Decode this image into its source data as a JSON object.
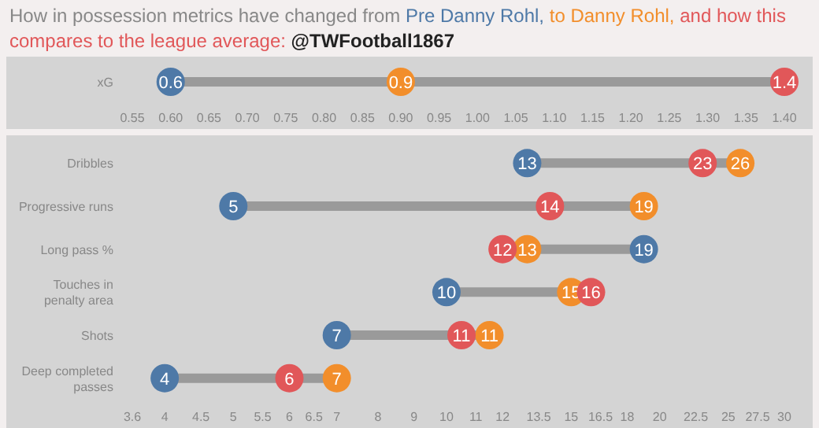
{
  "chart_data": [
    {
      "type": "scatter",
      "title": "How in possession metrics have changed from",
      "subtitle": "@TWFootball1867",
      "categories": [
        "xG"
      ],
      "orientation": "horizontal",
      "data_labels": true,
      "xlim": [
        0.55,
        1.4
      ],
      "xticks": [
        {
          "value": 0.55,
          "label": "0.55"
        },
        {
          "value": 0.6,
          "label": "0.60"
        },
        {
          "value": 0.65,
          "label": "0.65"
        },
        {
          "value": 0.7,
          "label": "0.70"
        },
        {
          "value": 0.75,
          "label": "0.75"
        },
        {
          "value": 0.8,
          "label": "0.80"
        },
        {
          "value": 0.85,
          "label": "0.85"
        },
        {
          "value": 0.9,
          "label": "0.90"
        },
        {
          "value": 0.95,
          "label": "0.95"
        },
        {
          "value": 1.0,
          "label": "1.00"
        },
        {
          "value": 1.05,
          "label": "1.05"
        },
        {
          "value": 1.1,
          "label": "1.10"
        },
        {
          "value": 1.15,
          "label": "1.15"
        },
        {
          "value": 1.2,
          "label": "1.20"
        },
        {
          "value": 1.25,
          "label": "1.25"
        },
        {
          "value": 1.3,
          "label": "1.30"
        },
        {
          "value": 1.35,
          "label": "1.35"
        },
        {
          "value": 1.4,
          "label": "1.40"
        }
      ],
      "series": [
        {
          "name": "Pre Danny Rohl,",
          "color": "#4e79a7",
          "values": [
            0.6
          ]
        },
        {
          "name": "to Danny Rohl,",
          "color": "#f28e2b",
          "values": [
            0.9
          ]
        },
        {
          "name": "and how this compares to the league average:",
          "color": "#e15759",
          "values": [
            1.4
          ]
        }
      ]
    },
    {
      "type": "scatter",
      "categories": [
        "Dribbles",
        "Progressive runs",
        "Long pass %",
        "Touches in penalty area",
        "Shots",
        "Deep completed passes"
      ],
      "orientation": "horizontal",
      "log": "x",
      "xlim": [
        3.6,
        30
      ],
      "xticks": [
        3.6,
        4,
        4.5,
        5,
        5.5,
        6,
        6.5,
        7,
        8,
        9,
        10,
        11,
        12,
        13.5,
        15,
        16.5,
        18,
        20,
        22.5,
        25,
        27.5,
        30
      ],
      "series": [
        {
          "color": "#4e79a7",
          "values": [
            13,
            5,
            19,
            10,
            7,
            4
          ],
          "value_labels": [
            "13",
            "5",
            "19",
            "10",
            "7",
            "4"
          ]
        },
        {
          "color": "#f28e2b",
          "values": [
            26,
            19,
            13,
            15,
            11.5,
            7
          ],
          "value_labels": [
            "26",
            "19",
            "13",
            "15",
            "11",
            "7"
          ]
        },
        {
          "color": "#e15759",
          "values": [
            23,
            14,
            12,
            16,
            10.5,
            6
          ],
          "value_labels": [
            "23",
            "14",
            "12",
            "16",
            "11",
            "6"
          ]
        }
      ]
    }
  ]
}
